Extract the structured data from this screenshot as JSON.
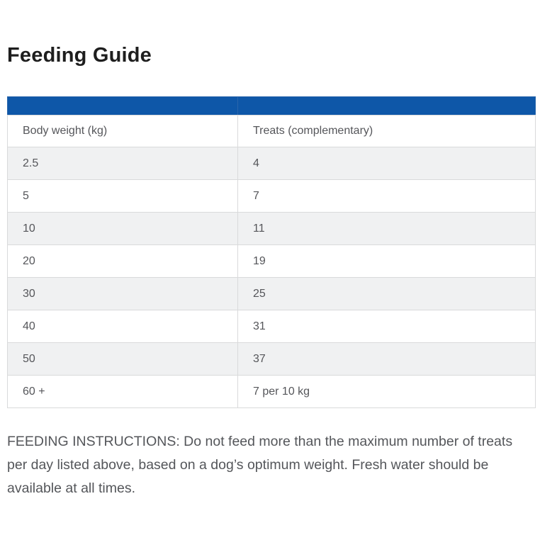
{
  "page": {
    "title": "Feeding Guide"
  },
  "table": {
    "columns": [
      {
        "label": "Body weight (kg)"
      },
      {
        "label": "Treats (complementary)"
      }
    ],
    "rows": [
      {
        "weight": "2.5",
        "treats": "4"
      },
      {
        "weight": "5",
        "treats": "7"
      },
      {
        "weight": "10",
        "treats": "11"
      },
      {
        "weight": "20",
        "treats": "19"
      },
      {
        "weight": "30",
        "treats": "25"
      },
      {
        "weight": "40",
        "treats": "31"
      },
      {
        "weight": "50",
        "treats": "37"
      },
      {
        "weight": "60 +",
        "treats": "7 per 10 kg"
      }
    ]
  },
  "instructions": {
    "text": "FEEDING INSTRUCTIONS: Do not feed more than the maximum number of treats per day listed above, based on a dog’s optimum weight. Fresh water should be available at all times."
  },
  "colors": {
    "accent_blue": "#0e57a8",
    "row_alt_background": "#f0f1f2",
    "border": "#d9dadb",
    "body_text": "#54565a",
    "title_text": "#1e1e1e"
  }
}
